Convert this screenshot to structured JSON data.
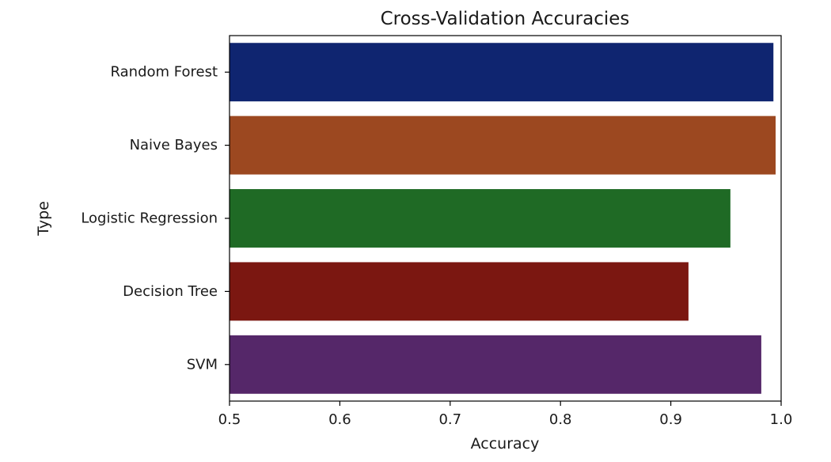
{
  "chart_data": {
    "type": "bar",
    "orientation": "horizontal",
    "title": "Cross-Validation Accuracies",
    "xlabel": "Accuracy",
    "ylabel": "Type",
    "categories": [
      "Random Forest",
      "Naive Bayes",
      "Logistic Regression",
      "Decision Tree",
      "SVM"
    ],
    "values": [
      0.993,
      0.995,
      0.954,
      0.916,
      0.982
    ],
    "colors": [
      "#0f2570",
      "#9c4820",
      "#1f6a25",
      "#7b1711",
      "#552769"
    ],
    "xlim": [
      0.5,
      1.0
    ],
    "xticks": [
      0.5,
      0.6,
      0.7,
      0.8,
      0.9,
      1.0
    ],
    "xtick_labels": [
      "0.5",
      "0.6",
      "0.7",
      "0.8",
      "0.9",
      "1.0"
    ],
    "grid": false,
    "legend": "none"
  }
}
